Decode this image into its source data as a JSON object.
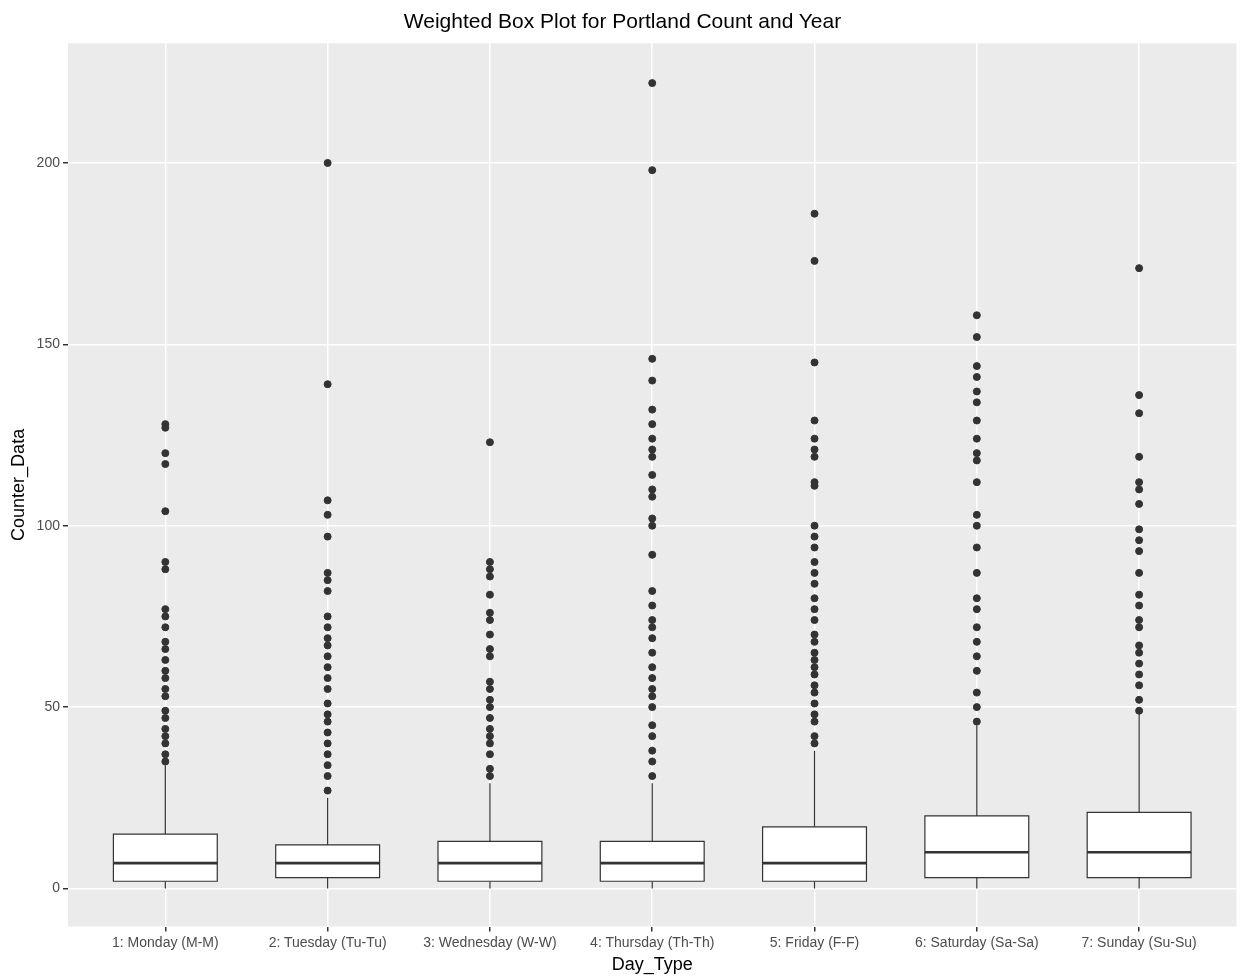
{
  "chart_data": {
    "type": "box",
    "title": "Weighted Box Plot for Portland Count and Year",
    "xlabel": "Day_Type",
    "ylabel": "Counter_Data",
    "categories": [
      "1: Monday (M-M)",
      "2: Tuesday (Tu-Tu)",
      "3: Wednesday (W-W)",
      "4: Thursday (Th-Th)",
      "5: Friday (F-F)",
      "6: Saturday (Sa-Sa)",
      "7: Sunday (Su-Su)"
    ],
    "boxes": [
      {
        "low": 0,
        "q1": 2,
        "median": 7,
        "q3": 15,
        "high": 34,
        "outliers": [
          128,
          127,
          120,
          117,
          104,
          90,
          88,
          77,
          75,
          72,
          68,
          66,
          63,
          60,
          58,
          55,
          53,
          49,
          47,
          44,
          42,
          40,
          37,
          35
        ]
      },
      {
        "low": 0,
        "q1": 3,
        "median": 7,
        "q3": 12,
        "high": 25,
        "outliers": [
          200,
          139,
          107,
          103,
          97,
          87,
          85,
          82,
          75,
          72,
          69,
          67,
          64,
          61,
          58,
          55,
          51,
          48,
          46,
          43,
          40,
          37,
          34,
          31,
          27
        ]
      },
      {
        "low": 0,
        "q1": 2,
        "median": 7,
        "q3": 13,
        "high": 29,
        "outliers": [
          123,
          90,
          88,
          86,
          81,
          76,
          74,
          70,
          66,
          64,
          57,
          55,
          52,
          50,
          47,
          44,
          42,
          40,
          37,
          33,
          31
        ]
      },
      {
        "low": 0,
        "q1": 2,
        "median": 7,
        "q3": 13,
        "high": 29,
        "outliers": [
          222,
          198,
          146,
          140,
          132,
          128,
          124,
          121,
          119,
          114,
          110,
          108,
          102,
          100,
          92,
          82,
          78,
          74,
          72,
          69,
          65,
          61,
          58,
          55,
          53,
          50,
          45,
          42,
          38,
          35,
          31
        ]
      },
      {
        "low": 0,
        "q1": 2,
        "median": 7,
        "q3": 17,
        "high": 38,
        "outliers": [
          186,
          173,
          145,
          129,
          124,
          121,
          119,
          112,
          111,
          100,
          97,
          94,
          90,
          87,
          84,
          80,
          77,
          74,
          70,
          68,
          65,
          63,
          61,
          59,
          56,
          54,
          51,
          48,
          46,
          42,
          40
        ]
      },
      {
        "low": 0,
        "q1": 3,
        "median": 10,
        "q3": 20,
        "high": 45,
        "outliers": [
          158,
          152,
          144,
          141,
          137,
          134,
          129,
          124,
          120,
          118,
          112,
          103,
          100,
          94,
          87,
          80,
          77,
          72,
          68,
          64,
          60,
          54,
          50,
          46
        ]
      },
      {
        "low": 0,
        "q1": 3,
        "median": 10,
        "q3": 21,
        "high": 48,
        "outliers": [
          171,
          136,
          131,
          119,
          112,
          110,
          106,
          99,
          96,
          93,
          87,
          81,
          78,
          74,
          72,
          67,
          65,
          62,
          59,
          56,
          52,
          49
        ]
      }
    ],
    "color": "#ffffff",
    "ylim": [
      -10.5,
      233
    ],
    "yticks": [
      0,
      50,
      100,
      150,
      200
    ],
    "grid": true,
    "legend": false
  }
}
